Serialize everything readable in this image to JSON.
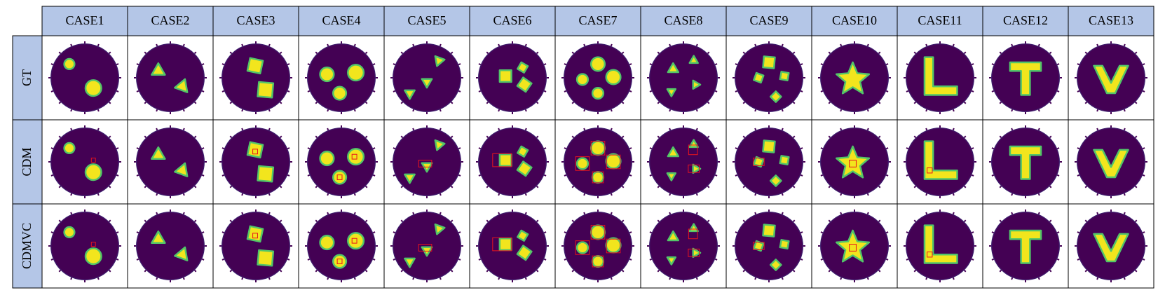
{
  "columns": [
    "CASE1",
    "CASE2",
    "CASE3",
    "CASE4",
    "CASE5",
    "CASE6",
    "CASE7",
    "CASE8",
    "CASE9",
    "CASE10",
    "CASE11",
    "CASE12",
    "CASE13"
  ],
  "row_labels": [
    "GT",
    "CDM",
    "CDMVC"
  ]
}
